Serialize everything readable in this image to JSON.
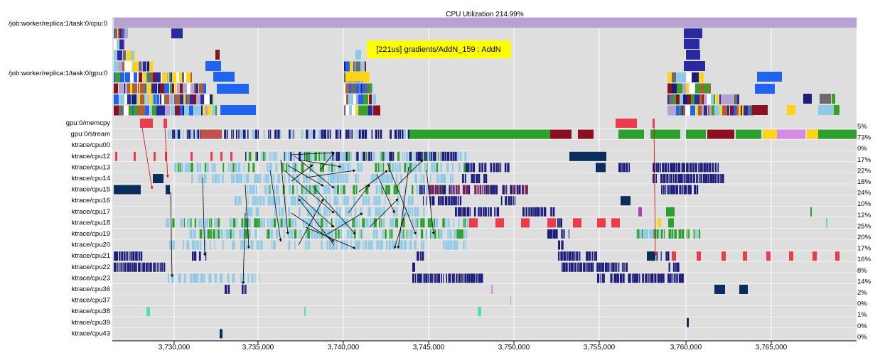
{
  "title": "CPU Utilization 214.99%",
  "tooltip": "[221us] gradients/AddN_159 : AddN",
  "process_labels": [
    "/job:worker/replica:1/task:0/cpu:0",
    "/job:worker/replica:1/task:0/gpu:0"
  ],
  "tracks": [
    {
      "name": "gpu:0/memcpy",
      "pct": "5%"
    },
    {
      "name": "gpu:0/stream",
      "pct": "73%"
    },
    {
      "name": "ktrace/cpu00",
      "pct": "0%"
    },
    {
      "name": "ktrace/cpu12",
      "pct": "17%"
    },
    {
      "name": "ktrace/cpu13",
      "pct": "22%"
    },
    {
      "name": "ktrace/cpu14",
      "pct": "18%"
    },
    {
      "name": "ktrace/cpu15",
      "pct": "24%"
    },
    {
      "name": "ktrace/cpu16",
      "pct": "10%"
    },
    {
      "name": "ktrace/cpu17",
      "pct": "12%"
    },
    {
      "name": "ktrace/cpu18",
      "pct": "25%"
    },
    {
      "name": "ktrace/cpu19",
      "pct": "20%"
    },
    {
      "name": "ktrace/cpu20",
      "pct": "17%"
    },
    {
      "name": "ktrace/cpu21",
      "pct": "16%"
    },
    {
      "name": "ktrace/cpu22",
      "pct": "8%"
    },
    {
      "name": "ktrace/cpu23",
      "pct": "14%"
    },
    {
      "name": "ktrace/cpu36",
      "pct": "2%"
    },
    {
      "name": "ktrace/cpu37",
      "pct": "0%"
    },
    {
      "name": "ktrace/cpu38",
      "pct": "1%"
    },
    {
      "name": "ktrace/cpu39",
      "pct": "0%"
    },
    {
      "name": "ktrace/cpu43",
      "pct": "0%"
    }
  ],
  "x_ticks": [
    "3,730,000",
    "3,735,000",
    "3,740,000",
    "3,745,000",
    "3,750,000",
    "3,755,000",
    "3,760,000",
    "3,765,000"
  ],
  "colors": {
    "bg": "#dedede",
    "utilization_bar": "#b8a2d4",
    "navy": "#1c1c7a",
    "light_blue": "#8fcbe6",
    "green": "#2ca02c",
    "red": "#ee3b4c",
    "dark_red": "#8b1020",
    "blue": "#1f63ee",
    "yellow": "#ffd31a",
    "tooltip_bg": "#ffff00"
  }
}
